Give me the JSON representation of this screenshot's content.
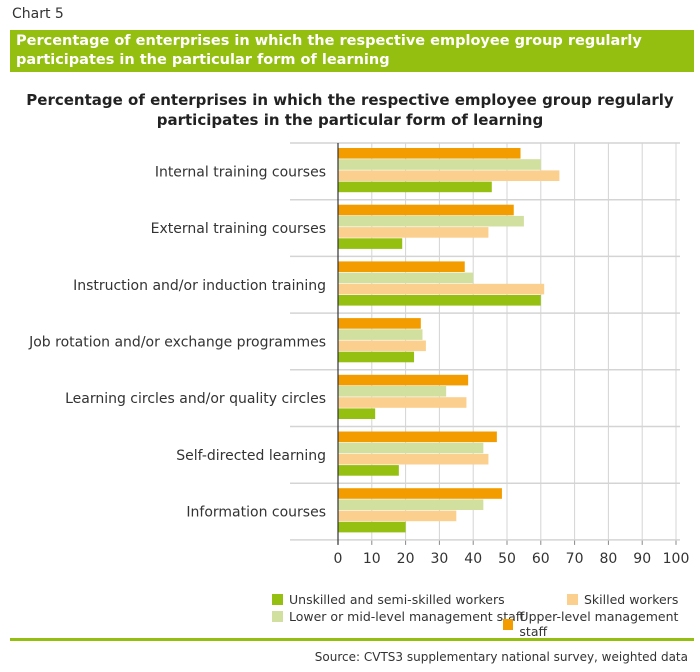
{
  "header": {
    "label": "Chart 5",
    "band_title": "Percentage of enterprises in which the respective employee group regularly participates in the particular form of learning"
  },
  "chart_data": {
    "type": "bar",
    "orientation": "horizontal",
    "title": "Percentage of enterprises in which the respective employee group regularly participates in the particular form of learning",
    "categories": [
      "Internal training courses",
      "External training courses",
      "Instruction and/or induction training",
      "Job rotation and/or exchange programmes",
      "Learning circles and/or quality circles",
      "Self-directed learning",
      "Information courses"
    ],
    "series": [
      {
        "name": "Upper-level management staff",
        "color": "#f39c00",
        "values": [
          54,
          52,
          37.5,
          24.5,
          38.5,
          47,
          48.5
        ]
      },
      {
        "name": "Lower or mid-level management staff",
        "color": "#d1e09e",
        "values": [
          60,
          55,
          40,
          25,
          32,
          43,
          43
        ]
      },
      {
        "name": "Skilled workers",
        "color": "#fbcf8e",
        "values": [
          65.5,
          44.5,
          61,
          26,
          38,
          44.5,
          35
        ]
      },
      {
        "name": "Unskilled and semi-skilled workers",
        "color": "#95c011",
        "values": [
          45.5,
          19,
          60,
          22.5,
          11,
          18,
          20
        ]
      }
    ],
    "xlim": [
      0,
      100
    ],
    "xticks": [
      "0",
      "10",
      "20",
      "30",
      "40",
      "50",
      "60",
      "70",
      "80",
      "90",
      "100"
    ],
    "grid": true,
    "legend_position": "bottom"
  },
  "source": "Source: CVTS3 supplementary national survey, weighted data"
}
